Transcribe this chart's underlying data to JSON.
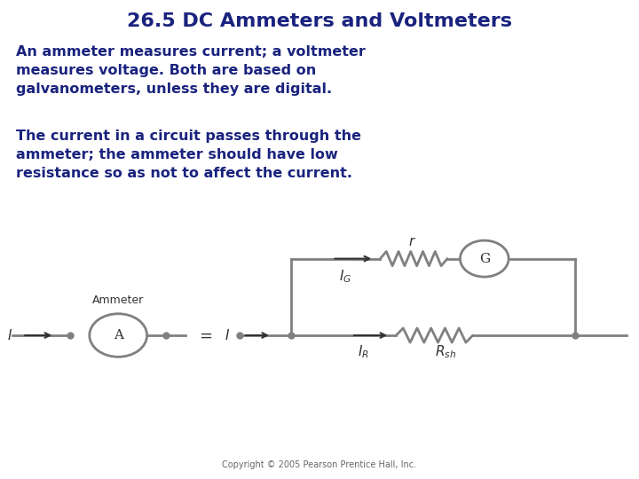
{
  "title": "26.5 DC Ammeters and Voltmeters",
  "title_color": "#1a237e",
  "title_fontsize": 16,
  "text1": "An ammeter measures current; a voltmeter\nmeasures voltage. Both are based on\ngalvanometers, unless they are digital.",
  "text2": "The current in a circuit passes through the\nammeter; the ammeter should have low\nresistance so as not to affect the current.",
  "text_color": "#1a237e",
  "text_fontsize": 11.5,
  "copyright": "Copyright © 2005 Pearson Prentice Hall, Inc.",
  "bg_color": "#ffffff",
  "circuit_color": "#808080",
  "label_color": "#333333"
}
